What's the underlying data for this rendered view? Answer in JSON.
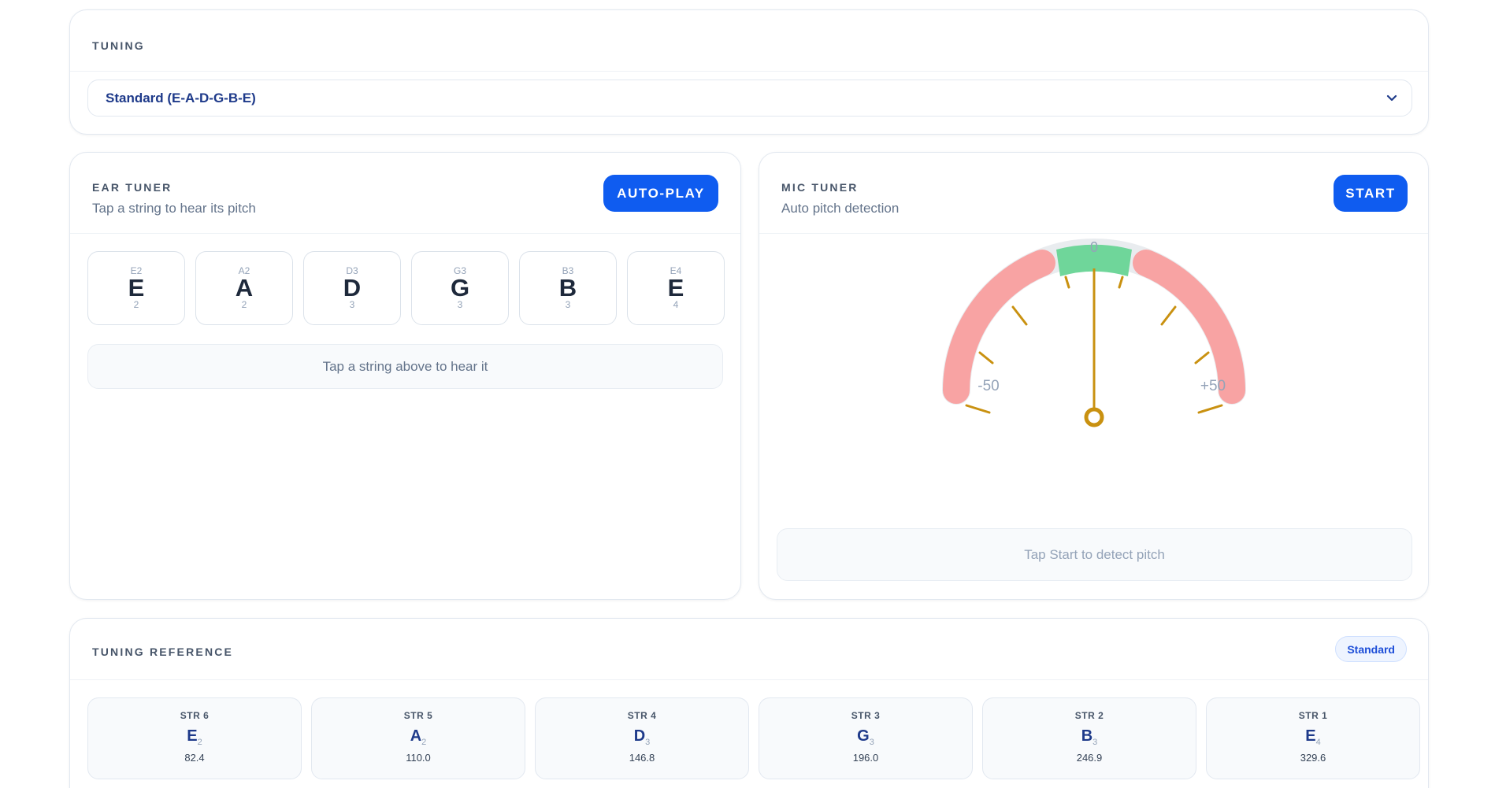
{
  "tuning": {
    "title": "TUNING",
    "selected": "Standard (E-A-D-G-B-E)"
  },
  "ear_tuner": {
    "title": "EAR TUNER",
    "subtitle": "Tap a string to hear its pitch",
    "button": "AUTO-PLAY",
    "strings": [
      {
        "label": "E2",
        "note": "E",
        "octave": "2"
      },
      {
        "label": "A2",
        "note": "A",
        "octave": "2"
      },
      {
        "label": "D3",
        "note": "D",
        "octave": "3"
      },
      {
        "label": "G3",
        "note": "G",
        "octave": "3"
      },
      {
        "label": "B3",
        "note": "B",
        "octave": "3"
      },
      {
        "label": "E4",
        "note": "E",
        "octave": "4"
      }
    ],
    "hint": "Tap a string above to hear it"
  },
  "mic_tuner": {
    "title": "MIC TUNER",
    "subtitle": "Auto pitch detection",
    "button": "START",
    "gauge": {
      "center_label": "0",
      "left_label": "-50",
      "right_label": "+50",
      "cents": 0,
      "colors": {
        "in_tune": "#6fd69a",
        "out_of_tune": "#f7a0a0",
        "needle": "#c99110",
        "track": "#e5e7eb"
      }
    },
    "hint": "Tap Start to detect pitch"
  },
  "reference": {
    "title": "TUNING REFERENCE",
    "badge": "Standard",
    "cells": [
      {
        "str": "STR 6",
        "note": "E",
        "octave": "2",
        "hz": "82.4"
      },
      {
        "str": "STR 5",
        "note": "A",
        "octave": "2",
        "hz": "110.0"
      },
      {
        "str": "STR 4",
        "note": "D",
        "octave": "3",
        "hz": "146.8"
      },
      {
        "str": "STR 3",
        "note": "G",
        "octave": "3",
        "hz": "196.0"
      },
      {
        "str": "STR 2",
        "note": "B",
        "octave": "3",
        "hz": "246.9"
      },
      {
        "str": "STR 1",
        "note": "E",
        "octave": "4",
        "hz": "329.6"
      }
    ]
  },
  "colors": {
    "accent": "#0f5cf0",
    "title_text": "#1e3a8a"
  }
}
